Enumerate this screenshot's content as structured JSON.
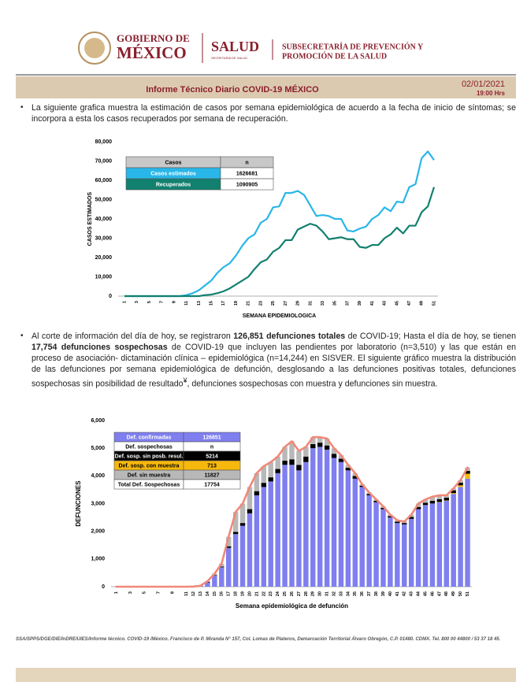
{
  "header": {
    "gov_line1": "GOBIERNO DE",
    "gov_line2": "MÉXICO",
    "salud": "SALUD",
    "salud_sub": "SECRETARÍA DE SALUD",
    "sub_line1": "SUBSECRETARÍA DE PREVENCIÓN Y",
    "sub_line2": "PROMOCIÓN DE LA SALUD"
  },
  "banner": {
    "title": "Informe Técnico Diario COVID-19 MÉXICO",
    "date": "02/01/2021",
    "time": "19:00 Hrs"
  },
  "paragraph1": "La siguiente grafica muestra la estimación de casos por semana epidemiológica de acuerdo a la fecha de inicio de síntomas; se incorpora a esta los casos recuperados por semana de recuperación.",
  "paragraph2": [
    "Al corte de información del día de hoy, se registraron ",
    "126,851 defunciones totales",
    " de COVID-19; Hasta el día de hoy, se tienen ",
    "17,754 defunciones sospechosas",
    " de COVID-19 que incluyen las pendientes por laboratorio (n=3,510) y las que están en proceso de asociación- dictaminación clínica – epidemiológica (n=14,244) en SISVER. El siguiente gráfico muestra la distribución de las defunciones por semana epidemiológica de defunción, desglosando a las defunciones positivas totales, defunciones sospechosas sin posibilidad de resultado",
    "¥",
    ", defunciones sospechosas con muestra y defunciones sin muestra."
  ],
  "chart_data": [
    {
      "type": "line",
      "x_label": "SEMANA EPIDEMIOLOGICA",
      "y_label": "CASOS ESTIMADOS",
      "x": [
        1,
        2,
        3,
        4,
        5,
        6,
        7,
        8,
        9,
        10,
        11,
        12,
        13,
        14,
        15,
        16,
        17,
        18,
        19,
        20,
        21,
        22,
        23,
        24,
        25,
        26,
        27,
        28,
        29,
        30,
        31,
        32,
        33,
        34,
        35,
        36,
        37,
        38,
        39,
        40,
        41,
        42,
        43,
        44,
        45,
        46,
        47,
        48,
        49,
        50,
        51
      ],
      "xlim": [
        1,
        51
      ],
      "xticks": [
        1,
        3,
        5,
        7,
        9,
        11,
        13,
        15,
        17,
        19,
        21,
        23,
        25,
        27,
        29,
        31,
        33,
        35,
        37,
        39,
        41,
        43,
        45,
        47,
        49,
        51
      ],
      "ylim": [
        0,
        80000
      ],
      "yticks": [
        0,
        {
          "value": 10000,
          "label": "10,000"
        },
        {
          "value": 20000,
          "label": "20,000"
        },
        {
          "value": 30000,
          "label": "30,000"
        },
        {
          "value": 40000,
          "label": "40,000"
        },
        {
          "value": 50000,
          "label": "50,000"
        },
        {
          "value": 60000,
          "label": "60,000"
        },
        {
          "value": 70000,
          "label": "70,000"
        },
        {
          "value": 80000,
          "label": "80,000"
        }
      ],
      "legend_header": [
        "Casos",
        "n"
      ],
      "series": [
        {
          "name": "Casos estimados",
          "color": "#29b6e8",
          "total": 1626681,
          "values": [
            0,
            0,
            0,
            0,
            0,
            0,
            0,
            0,
            0,
            0,
            500,
            1500,
            3000,
            5500,
            8000,
            12000,
            15000,
            17000,
            21000,
            26000,
            30000,
            32000,
            38000,
            40000,
            46000,
            46500,
            53500,
            53500,
            54500,
            52500,
            47000,
            41500,
            42000,
            41500,
            40000,
            40000,
            34000,
            33500,
            35000,
            36000,
            40000,
            42000,
            46000,
            44000,
            49000,
            48500,
            56500,
            58000,
            71500,
            75000,
            70500
          ]
        },
        {
          "name": "Recuperados",
          "color": "#12806f",
          "total": 1090905,
          "values": [
            0,
            0,
            0,
            0,
            0,
            0,
            0,
            0,
            0,
            0,
            0,
            0,
            0,
            500,
            800,
            1500,
            2500,
            4000,
            6000,
            8000,
            10000,
            14000,
            17500,
            19000,
            23000,
            25000,
            29000,
            29000,
            34500,
            36000,
            37500,
            36500,
            33500,
            29500,
            30000,
            30500,
            29500,
            29500,
            25500,
            25000,
            26500,
            26500,
            30000,
            32000,
            35500,
            32500,
            36500,
            36500,
            43500,
            46500,
            56500
          ]
        }
      ]
    },
    {
      "type": "stacked_bar",
      "x_label": "Semana epidemiológica de defunción",
      "y_label": "DEFUNCIONES",
      "x": [
        1,
        2,
        3,
        4,
        5,
        6,
        7,
        8,
        9,
        10,
        11,
        12,
        13,
        14,
        15,
        16,
        17,
        18,
        19,
        20,
        21,
        22,
        23,
        24,
        25,
        26,
        27,
        28,
        29,
        30,
        31,
        32,
        33,
        34,
        35,
        36,
        37,
        38,
        39,
        40,
        41,
        42,
        43,
        44,
        45,
        46,
        47,
        48,
        49,
        50,
        51
      ],
      "xlim": [
        0.5,
        51.5
      ],
      "xticks": [
        1,
        3,
        5,
        7,
        9,
        11,
        12,
        13,
        14,
        15,
        16,
        17,
        18,
        19,
        20,
        21,
        22,
        23,
        24,
        25,
        26,
        27,
        28,
        29,
        30,
        31,
        32,
        33,
        34,
        35,
        36,
        37,
        38,
        39,
        40,
        41,
        42,
        43,
        44,
        45,
        46,
        47,
        48,
        49,
        50,
        51
      ],
      "ylim": [
        0,
        6000
      ],
      "yticks": [
        0,
        {
          "value": 1000,
          "label": "1,000"
        },
        {
          "value": 2000,
          "label": "2,000"
        },
        {
          "value": 3000,
          "label": "3,000"
        },
        {
          "value": 4000,
          "label": "4,000"
        },
        {
          "value": 5000,
          "label": "5,000"
        },
        {
          "value": 6000,
          "label": "6,000"
        }
      ],
      "outline_color": "#f08878",
      "legend_subheader": [
        "Def. sospechosas",
        "n"
      ],
      "legend_total": [
        "Total Def. Sospechosas",
        17754
      ],
      "series": [
        {
          "name": "Def. confirmadas",
          "color": "#7f7ff0",
          "total": 126851,
          "values": [
            0,
            0,
            0,
            0,
            0,
            0,
            0,
            0,
            0,
            0,
            0,
            5,
            30,
            150,
            400,
            700,
            1400,
            1900,
            2200,
            2650,
            3300,
            3600,
            3800,
            4100,
            4400,
            4400,
            4200,
            4500,
            5000,
            5050,
            4950,
            4650,
            4500,
            4200,
            3900,
            3600,
            3300,
            3050,
            2800,
            2500,
            2300,
            2250,
            2450,
            2800,
            2950,
            3000,
            3050,
            3100,
            3350,
            3600,
            3900
          ]
        },
        {
          "name": "Def. sosp. con  muestra",
          "color": "#f6b80c",
          "total": 713,
          "values": [
            0,
            0,
            0,
            0,
            0,
            0,
            0,
            0,
            0,
            0,
            0,
            0,
            0,
            0,
            0,
            0,
            0,
            0,
            0,
            0,
            0,
            0,
            0,
            0,
            0,
            0,
            0,
            0,
            0,
            0,
            0,
            0,
            0,
            0,
            0,
            0,
            0,
            0,
            0,
            0,
            0,
            0,
            0,
            0,
            0,
            5,
            10,
            15,
            30,
            60,
            180
          ]
        },
        {
          "name": "Def. sosp. sin posb. resul.",
          "color": "#000000",
          "total": 5214,
          "values": [
            0,
            0,
            0,
            0,
            0,
            0,
            0,
            0,
            0,
            0,
            0,
            0,
            0,
            20,
            20,
            30,
            60,
            80,
            100,
            150,
            150,
            150,
            150,
            150,
            150,
            200,
            200,
            200,
            150,
            150,
            150,
            150,
            120,
            100,
            100,
            50,
            50,
            50,
            50,
            50,
            50,
            50,
            70,
            80,
            80,
            100,
            100,
            100,
            100,
            100,
            100
          ]
        },
        {
          "name": "Def. sin muestra",
          "color": "#b8b8b8",
          "total": 11827,
          "values": [
            0,
            0,
            0,
            0,
            0,
            0,
            0,
            0,
            0,
            0,
            0,
            0,
            5,
            30,
            50,
            100,
            340,
            720,
            700,
            800,
            650,
            600,
            550,
            450,
            500,
            650,
            500,
            350,
            250,
            200,
            250,
            200,
            130,
            100,
            100,
            50,
            50,
            50,
            50,
            50,
            50,
            50,
            80,
            120,
            120,
            145,
            140,
            85,
            70,
            90,
            120
          ]
        }
      ]
    }
  ],
  "footer": "SSA/SPPS/DGE/DIE/InDRE/UIES/Informe técnico. COVID-19 /México. Francisco de P. Miranda N° 157, Col. Lomas de Plateros, Demarcación Territorial Álvaro Obregón, C.P. 01480. CDMX. Tel. 800 00 44800 / 53 37 18 45."
}
